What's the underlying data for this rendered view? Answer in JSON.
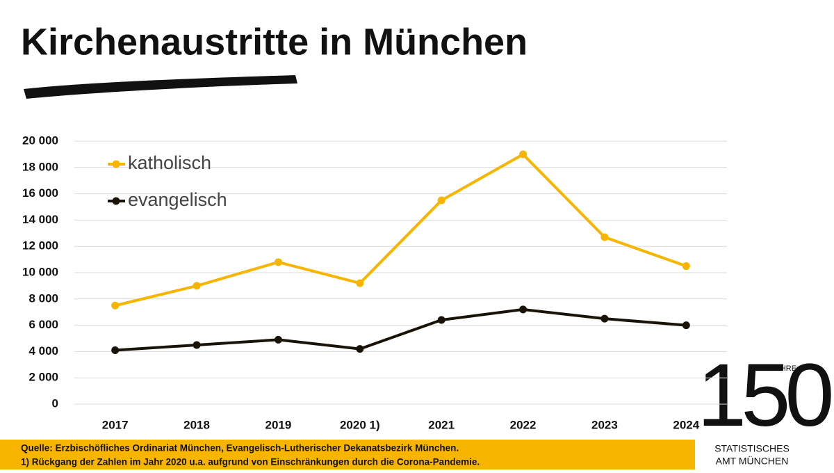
{
  "chart_data": {
    "type": "line",
    "title": "Kirchenaustritte in München",
    "categories": [
      "2017",
      "2018",
      "2019",
      "2020 1)",
      "2021",
      "2022",
      "2023",
      "2024"
    ],
    "series": [
      {
        "name": "katholisch",
        "color": "#f7b500",
        "values": [
          7500,
          9000,
          10800,
          9200,
          15500,
          19000,
          12700,
          10500
        ]
      },
      {
        "name": "evangelisch",
        "color": "#1a1408",
        "values": [
          4100,
          4500,
          4900,
          4200,
          6400,
          7200,
          6500,
          6000
        ]
      }
    ],
    "ylim": [
      0,
      20000
    ],
    "yticks": [
      0,
      {
        "value": 2000,
        "label": "2 000"
      },
      {
        "value": 4000,
        "label": "4 000"
      },
      {
        "value": 6000,
        "label": "6 000"
      },
      {
        "value": 8000,
        "label": "8 000"
      },
      {
        "value": 10000,
        "label": "10 000"
      },
      {
        "value": 12000,
        "label": "12 000"
      },
      {
        "value": 14000,
        "label": "14 000"
      },
      {
        "value": 16000,
        "label": "16 000"
      },
      {
        "value": 18000,
        "label": "18 000"
      },
      {
        "value": 20000,
        "label": "20 000"
      }
    ],
    "grid": true,
    "legend": "upper left",
    "source": "Quelle: Erzbischöfliches Ordinariat München, Evangelisch-Lutherischer Dekanatsbezirk München.",
    "footnote": "1) Rückgang der Zahlen im Jahr 2020 u.a. aufgrund von Einschränkungen durch die Corona-Pandemie.",
    "logo": {
      "number": "150",
      "jahre": "JAHRE",
      "line1": "STATISTISCHES",
      "line2": "AMT MÜNCHEN"
    }
  }
}
